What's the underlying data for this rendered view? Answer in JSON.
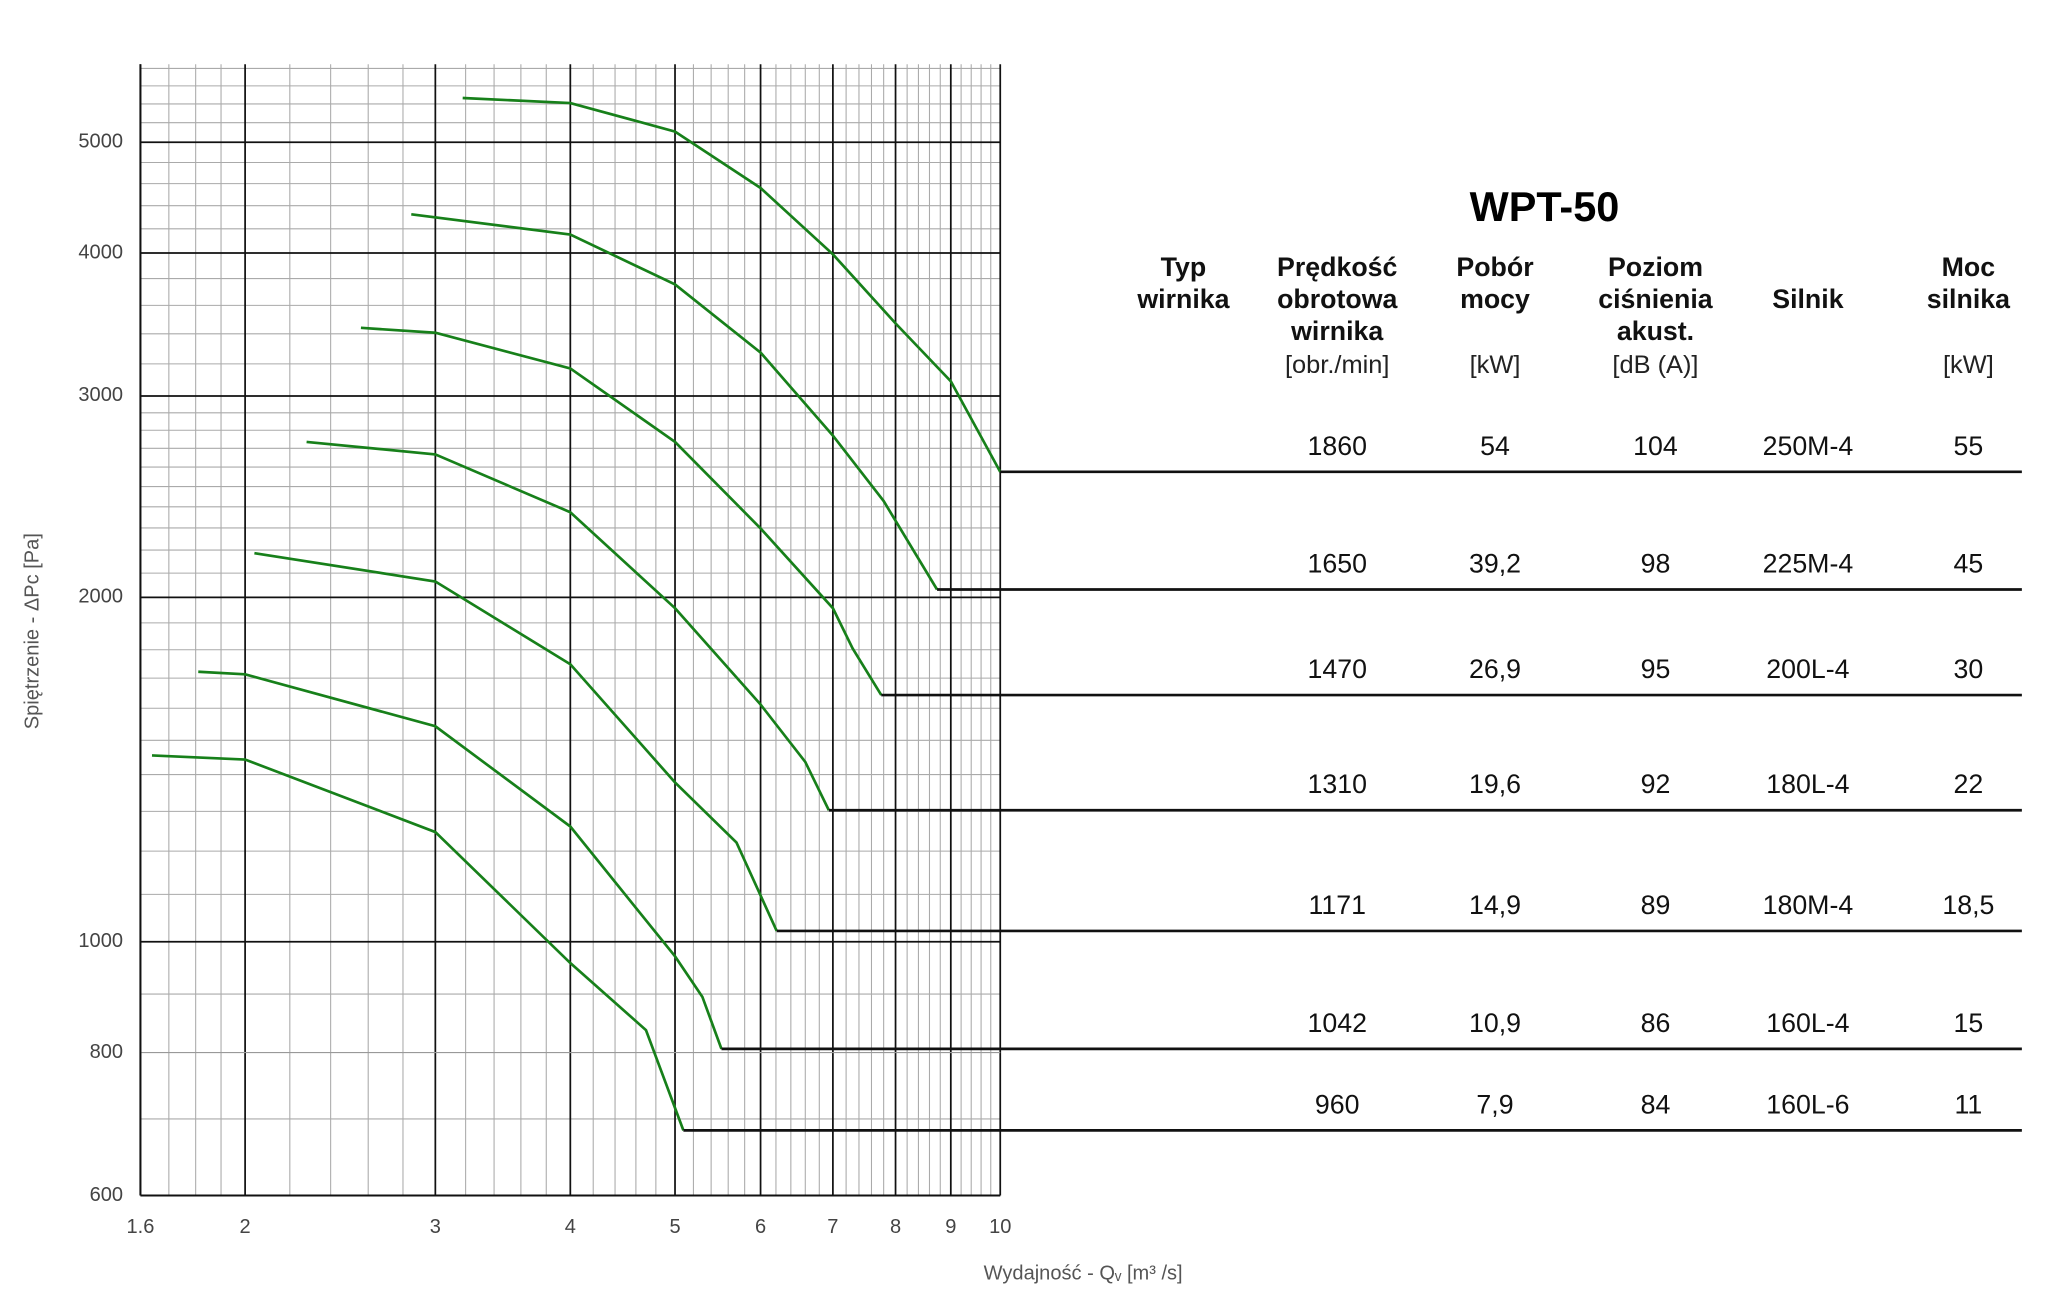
{
  "chart_data": {
    "type": "line",
    "log_x": true,
    "log_y": true,
    "grid": true,
    "x_label": "Wydajność - Qᵥ [m³ /s]",
    "y_label": "Spiętrzenie - ΔPc [Pa]",
    "xlim": [
      1.6,
      10
    ],
    "ylim": [
      600,
      5850
    ],
    "xticks": [
      1.6,
      2,
      3,
      4,
      5,
      6,
      7,
      8,
      9,
      10
    ],
    "yticks": [
      600,
      800,
      1000,
      2000,
      3000,
      4000,
      5000
    ],
    "xminor": [
      1.7,
      1.8,
      1.9,
      2.2,
      2.4,
      2.6,
      2.8,
      3.2,
      3.4,
      3.6,
      3.8,
      4.2,
      4.4,
      4.6,
      4.8,
      5.2,
      5.4,
      5.6,
      5.8,
      6.2,
      6.4,
      6.6,
      6.8,
      7.2,
      7.4,
      7.6,
      7.8,
      8.2,
      8.4,
      8.6,
      8.8,
      9.2,
      9.4,
      9.6,
      9.8
    ],
    "yminor": [
      700,
      900,
      1100,
      1200,
      1300,
      1400,
      1500,
      1600,
      1700,
      1800,
      1900,
      2100,
      2200,
      2300,
      2400,
      2500,
      2600,
      2700,
      2800,
      2900,
      3200,
      3400,
      3600,
      3800,
      4200,
      4400,
      4600,
      4800,
      5200,
      5400,
      5600,
      5800
    ],
    "series": [
      {
        "color": "#17801a",
        "x": [
          3.18,
          4,
          5,
          6,
          7,
          8,
          9,
          10
        ],
        "values": [
          5465,
          5410,
          5108,
          4560,
          3990,
          3472,
          3090,
          2575
        ]
      },
      {
        "color": "#17801a",
        "x": [
          2.85,
          4,
          5,
          6,
          7,
          7.8,
          8.74
        ],
        "values": [
          4324,
          4152,
          3755,
          3274,
          2770,
          2428,
          2032
        ]
      },
      {
        "color": "#17801a",
        "x": [
          2.56,
          3,
          4,
          5,
          6,
          7,
          7.3,
          7.76
        ],
        "values": [
          3441,
          3407,
          3171,
          2735,
          2298,
          1957,
          1805,
          1643
        ]
      },
      {
        "color": "#17801a",
        "x": [
          2.28,
          3,
          4,
          5,
          6,
          6.6,
          6.94
        ],
        "values": [
          2735,
          2667,
          2374,
          1957,
          1612,
          1436,
          1303
        ]
      },
      {
        "color": "#17801a",
        "x": [
          2.04,
          3,
          4,
          5,
          5.7,
          6.21
        ],
        "values": [
          2186,
          2065,
          1748,
          1378,
          1221,
          1022
        ]
      },
      {
        "color": "#17801a",
        "x": [
          1.81,
          2,
          3,
          4,
          5,
          5.3,
          5.52
        ],
        "values": [
          1722,
          1713,
          1543,
          1261,
          971,
          895,
          806
        ]
      },
      {
        "color": "#17801a",
        "x": [
          1.64,
          2,
          3,
          4,
          4.7,
          5.09
        ],
        "values": [
          1455,
          1443,
          1247,
          958,
          837,
          684
        ]
      }
    ]
  },
  "table": {
    "title": "WPT-50",
    "columns": [
      {
        "name": [
          "Typ",
          "wirnika"
        ]
      },
      {
        "name": [
          "Prędkość",
          "obrotowa",
          "wirnika"
        ],
        "unit": "[obr./min]"
      },
      {
        "name": [
          "Pobór",
          "mocy"
        ],
        "unit": "[kW]"
      },
      {
        "name": [
          "Poziom",
          "ciśnienia",
          "akust."
        ],
        "unit": "[dB (A)]"
      },
      {
        "name": [
          "Silnik"
        ]
      },
      {
        "name": [
          "Moc",
          "silnika"
        ],
        "unit": "[kW]"
      }
    ],
    "rows": [
      [
        "1860",
        "54",
        "104",
        "250M-4",
        "55"
      ],
      [
        "1650",
        "39,2",
        "98",
        "225M-4",
        "45"
      ],
      [
        "1470",
        "26,9",
        "95",
        "200L-4",
        "30"
      ],
      [
        "1310",
        "19,6",
        "92",
        "180L-4",
        "22"
      ],
      [
        "1171",
        "14,9",
        "89",
        "180M-4",
        "18,5"
      ],
      [
        "1042",
        "10,9",
        "86",
        "160L-4",
        "15"
      ],
      [
        "960",
        "7,9",
        "84",
        "160L-6",
        "11"
      ]
    ]
  }
}
